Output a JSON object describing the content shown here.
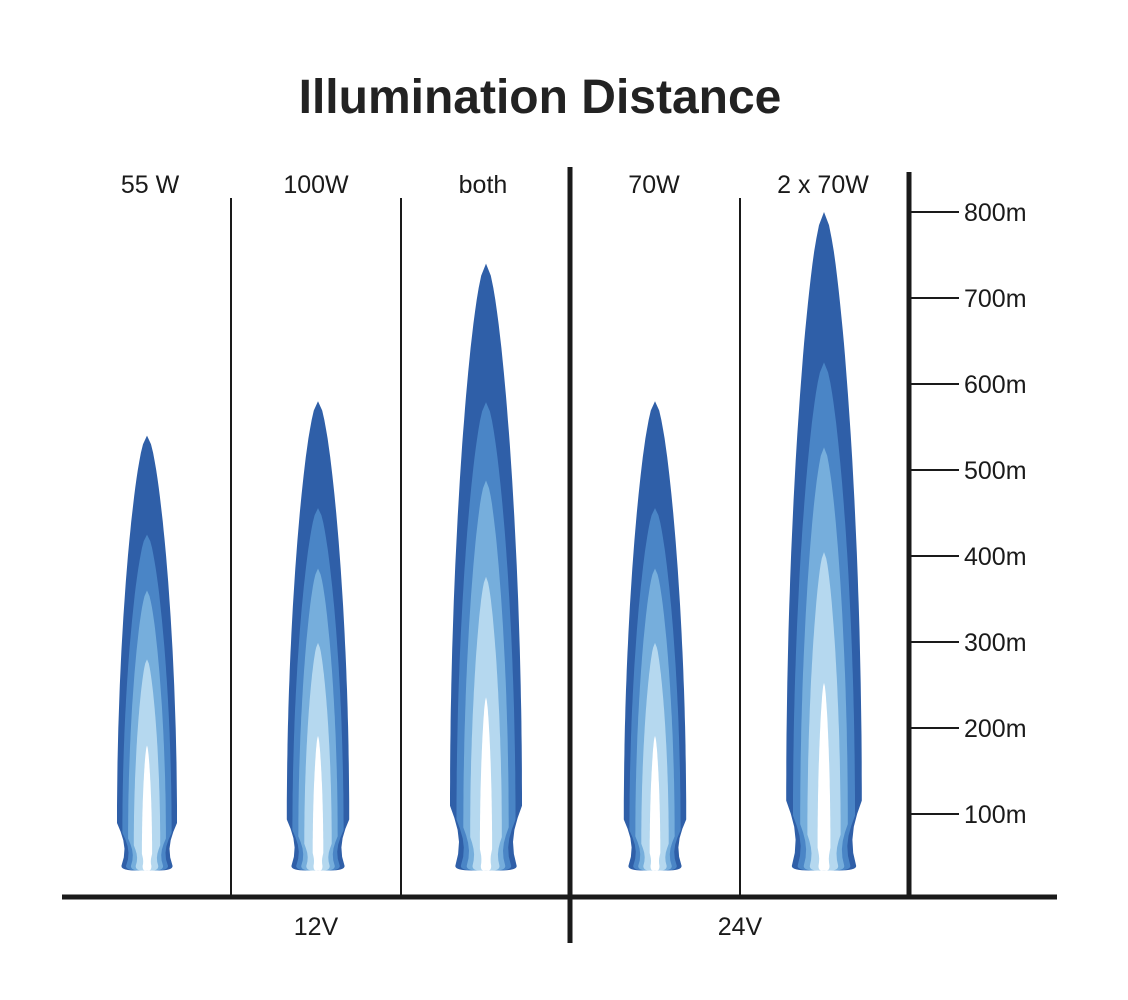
{
  "chart_data": {
    "type": "bar",
    "title": "Illumination Distance",
    "categories": [
      "55 W",
      "100W",
      "both",
      "70W",
      "2 x 70W"
    ],
    "groups": [
      {
        "label": "12V",
        "categories": [
          "55 W",
          "100W",
          "both"
        ]
      },
      {
        "label": "24V",
        "categories": [
          "70W",
          "2 x 70W"
        ]
      }
    ],
    "values": [
      540,
      580,
      740,
      580,
      800
    ],
    "y_ticks": [
      {
        "value": 100,
        "label": "100m"
      },
      {
        "value": 200,
        "label": "200m"
      },
      {
        "value": 300,
        "label": "300m"
      },
      {
        "value": 400,
        "label": "400m"
      },
      {
        "value": 500,
        "label": "500m"
      },
      {
        "value": 600,
        "label": "600m"
      },
      {
        "value": 700,
        "label": "700m"
      },
      {
        "value": 800,
        "label": "800m"
      }
    ],
    "ylim": [
      0,
      800
    ],
    "unit": "m",
    "grid": false,
    "colors": {
      "beam_outer": "#2f5fa8",
      "beam_band_2": "#4a85c6",
      "beam_band_3": "#76aedc",
      "beam_band_4": "#b5d8ef",
      "beam_core": "#ffffff",
      "axis": "#1a1a1a"
    }
  }
}
